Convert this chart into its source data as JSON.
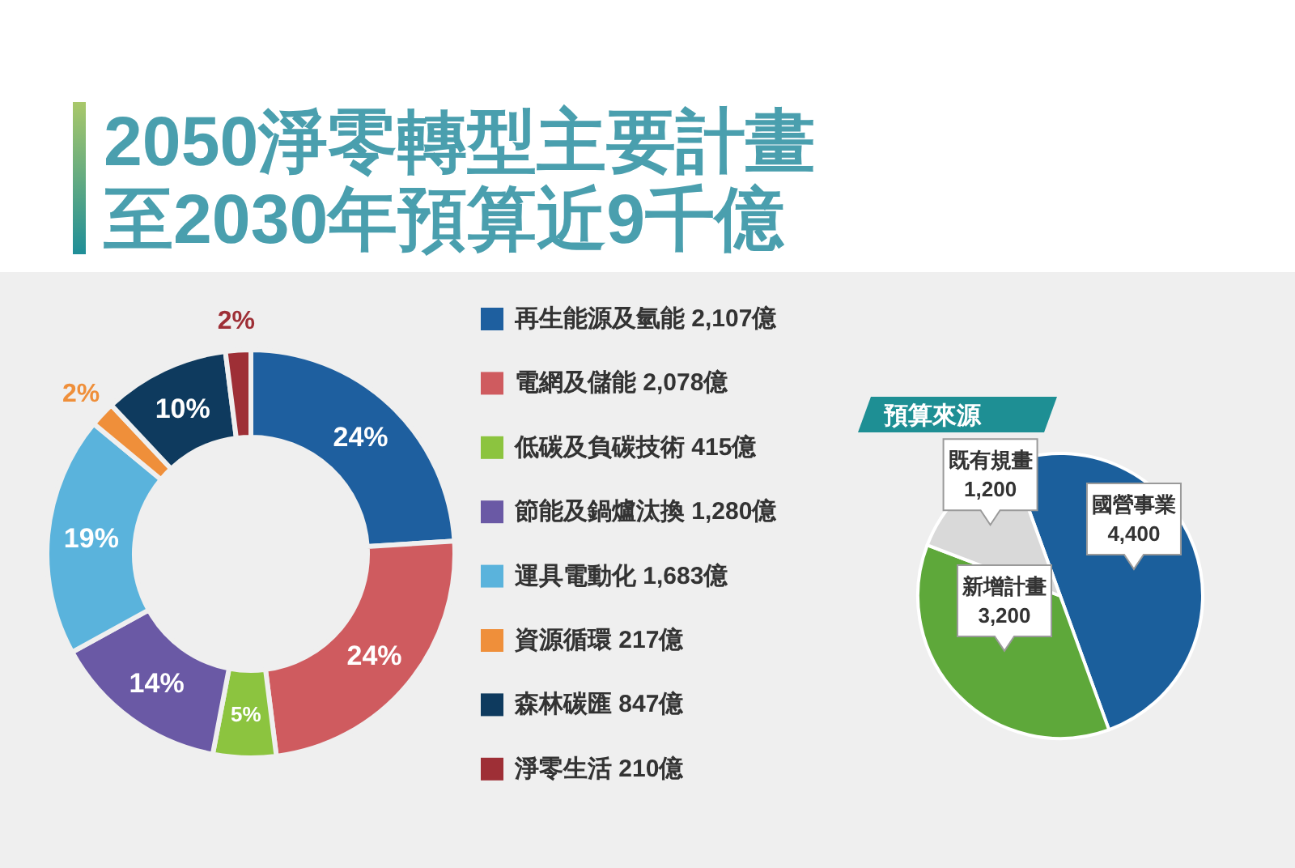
{
  "chart_data": [
    {
      "type": "donut",
      "title": "2050淨零轉型主要計畫",
      "subtitle": "至2030年預算近9千億",
      "categories": [
        "再生能源及氫能 2,107億",
        "電網及儲能 2,078億",
        "低碳及負碳技術 415億",
        "節能及鍋爐汰換 1,280億",
        "運具電動化 1,683億",
        "資源循環 217億",
        "森林碳匯 847億",
        "淨零生活 210億"
      ],
      "values": [
        24,
        24,
        5,
        14,
        19,
        2,
        10,
        2
      ],
      "value_labels": [
        "24%",
        "24%",
        "5%",
        "14%",
        "19%",
        "2%",
        "10%",
        "2%"
      ],
      "colors": [
        "#1e5f9f",
        "#cf5b5f",
        "#8cc43f",
        "#6a59a5",
        "#5ab3dc",
        "#ef8f3a",
        "#0e3a5e",
        "#9e2f36"
      ],
      "legend": "right"
    },
    {
      "type": "pie",
      "title": "預算來源",
      "categories": [
        "國營事業",
        "新增計畫",
        "既有規畫"
      ],
      "values": [
        4400,
        3200,
        1200
      ],
      "value_labels": [
        "4,400",
        "3,200",
        "1,200"
      ],
      "colors": [
        "#1b5f9c",
        "#5ea83a",
        "#d9d9d9"
      ]
    }
  ]
}
